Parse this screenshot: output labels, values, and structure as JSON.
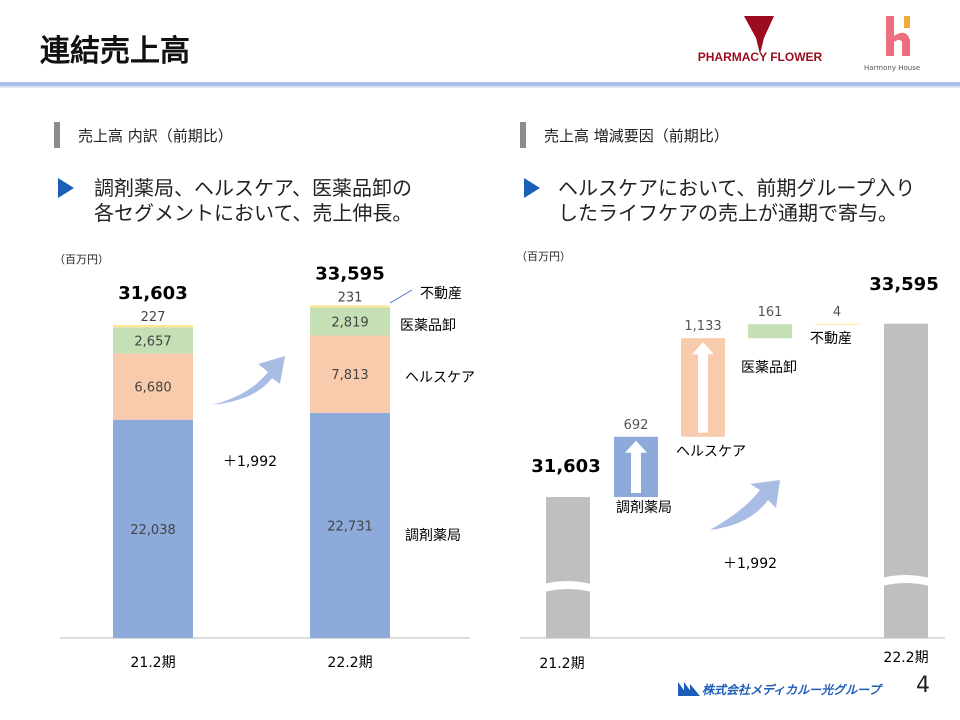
{
  "header": {
    "title": "連結売上高",
    "logo1": "PHARMACY FLOWER",
    "logo2": "Harmony House"
  },
  "left": {
    "section_title": "売上高 内訳（前期比）",
    "bullet_line1": "調剤薬局、ヘルスケア、医薬品卸の",
    "bullet_line2": "各セグメントにおいて、売上伸長。",
    "unit": "（百万円）"
  },
  "right": {
    "section_title": "売上高 増減要因（前期比）",
    "bullet_line1": "ヘルスケアにおいて、前期グループ入り",
    "bullet_line2": "したライフケアの売上が通期で寄与。",
    "unit": "（百万円）"
  },
  "footer": {
    "company": "株式会社メディカルー光グループ",
    "page_number": "4"
  },
  "colors": {
    "pharmacy": "#8eaadb",
    "healthcare": "#f8cbad",
    "wholesale": "#c5e0b4",
    "realestate": "#ffe699",
    "total": "#bfbfbf",
    "accent": "#1d5fb8"
  },
  "chart_data": [
    {
      "type": "bar",
      "stacked": true,
      "categories": [
        "21.2期",
        "22.2期"
      ],
      "series": [
        {
          "name": "調剤薬局",
          "values": [
            22038,
            22731
          ],
          "labels": [
            "22,038",
            "22,731"
          ]
        },
        {
          "name": "ヘルスケア",
          "values": [
            6680,
            7813
          ],
          "labels": [
            "6,680",
            "7,813"
          ]
        },
        {
          "name": "医薬品卸",
          "values": [
            2657,
            2819
          ],
          "labels": [
            "2,657",
            "2,819"
          ]
        },
        {
          "name": "不動産",
          "values": [
            227,
            231
          ],
          "labels": [
            "227",
            "231"
          ]
        }
      ],
      "totals": [
        "31,603",
        "33,595"
      ],
      "difference": "＋1,992",
      "ylim": [
        0,
        34000
      ]
    },
    {
      "type": "bar",
      "waterfall": true,
      "start": {
        "label": "21.2期",
        "value": 31603,
        "text": "31,603"
      },
      "end": {
        "label": "22.2期",
        "value": 33595,
        "text": "33,595"
      },
      "steps": [
        {
          "name": "調剤薬局",
          "value": 692,
          "text": "692"
        },
        {
          "name": "ヘルスケア",
          "value": 1133,
          "text": "1,133"
        },
        {
          "name": "医薬品卸",
          "value": 161,
          "text": "161"
        },
        {
          "name": "不動産",
          "value": 4,
          "text": "4"
        }
      ],
      "difference": "＋1,992",
      "axis_break": true
    }
  ]
}
